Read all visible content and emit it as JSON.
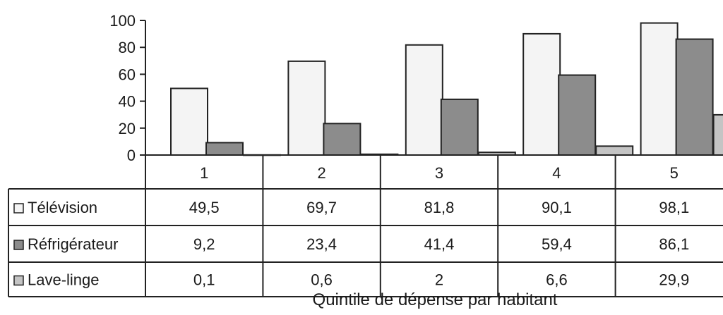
{
  "chart_data": {
    "type": "bar",
    "categories": [
      "1",
      "2",
      "3",
      "4",
      "5"
    ],
    "series": [
      {
        "name": "Télévision",
        "values": [
          49.5,
          69.7,
          81.8,
          90.1,
          98.1
        ],
        "labels": [
          "49,5",
          "69,7",
          "81,8",
          "90,1",
          "98,1"
        ],
        "color": "#f4f4f4"
      },
      {
        "name": "Réfrigérateur",
        "values": [
          9.2,
          23.4,
          41.4,
          59.4,
          86.1
        ],
        "labels": [
          "9,2",
          "23,4",
          "41,4",
          "59,4",
          "86,1"
        ],
        "color": "#8c8c8c"
      },
      {
        "name": "Lave-linge",
        "values": [
          0.1,
          0.6,
          2,
          6.6,
          29.9
        ],
        "labels": [
          "0,1",
          "0,6",
          "2",
          "6,6",
          "29,9"
        ],
        "color": "#c4c4c4"
      }
    ],
    "yticks": [
      "0",
      "20",
      "40",
      "60",
      "80",
      "100"
    ],
    "ylim": [
      0,
      100
    ],
    "xlabel": "Quintile de dépense par habitant",
    "ylabel": "",
    "grid": false,
    "legend": "data-table",
    "colors": {
      "edge": "#222222",
      "text": "#1a1a1a"
    }
  }
}
